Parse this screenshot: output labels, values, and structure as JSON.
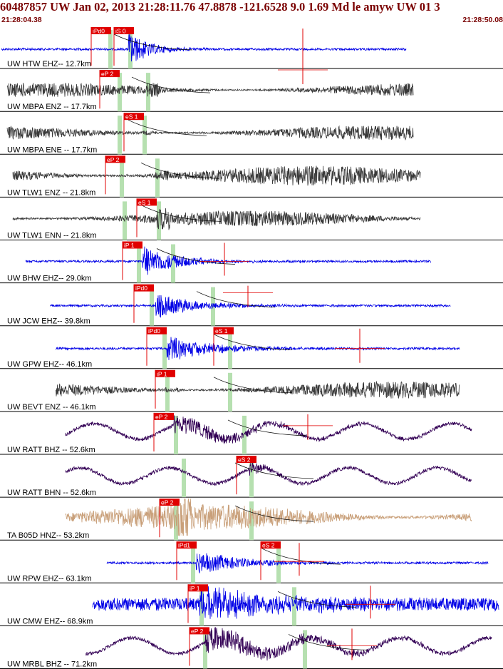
{
  "header": {
    "title": "60487857 UW Jan 02, 2013 21:28:11.76   47.8878 -121.6528  9.0 1.69 Md le amyw UW 01    3",
    "time_start": "21:28:04.38",
    "time_end": "21:28:50.08"
  },
  "colors": {
    "title_text": "#7a0000",
    "pick_box": "#e00000",
    "pick_bar": "#b6e0b0",
    "trace_blue": "#0000e6",
    "trace_gray": "#3a3a3a",
    "trace_purple": "#330055",
    "trace_tan": "#c9a07a",
    "amp_marker": "#e00000",
    "travel_curve": "#000000"
  },
  "traces": [
    {
      "label": "UW HTW EHZ-- 12.7km",
      "color": "blue",
      "style": "event",
      "picks": [
        "iPd0",
        "iS 0"
      ]
    },
    {
      "label": "UW MBPA ENZ -- 17.7km",
      "color": "gray",
      "style": "noise",
      "picks": [
        "eP 2"
      ]
    },
    {
      "label": "UW MBPA ENE -- 17.7km",
      "color": "gray",
      "style": "noise",
      "picks": [
        "eS 1"
      ]
    },
    {
      "label": "UW TLW1 ENZ -- 21.8km",
      "color": "gray",
      "style": "noise",
      "picks": [
        "eP 2"
      ]
    },
    {
      "label": "UW TLW1 ENN -- 21.8km",
      "color": "gray",
      "style": "noise",
      "picks": [
        "eS 1"
      ]
    },
    {
      "label": "UW BHW EHZ-- 29.0km",
      "color": "blue",
      "style": "event",
      "picks": [
        "iP 1"
      ]
    },
    {
      "label": "UW JCW EHZ-- 39.8km",
      "color": "blue",
      "style": "event",
      "picks": [
        "iPd0"
      ]
    },
    {
      "label": "UW GPW EHZ-- 46.1km",
      "color": "blue",
      "style": "event",
      "picks": [
        "iPd0",
        "eS 1"
      ]
    },
    {
      "label": "UW BEVT ENZ -- 46.1km",
      "color": "gray",
      "style": "noise",
      "picks": [
        "iP 1"
      ]
    },
    {
      "label": "UW RATT BHZ -- 52.6km",
      "color": "purple",
      "style": "wave",
      "picks": [
        "eP 2"
      ]
    },
    {
      "label": "UW RATT BHN -- 52.6km",
      "color": "purple",
      "style": "wave",
      "picks": [
        "eS 2"
      ]
    },
    {
      "label": "TA B05D HNZ-- 53.2km",
      "color": "tan",
      "style": "noise",
      "picks": [
        "eP 2"
      ]
    },
    {
      "label": "UW RPW EHZ-- 63.1km",
      "color": "blue",
      "style": "event",
      "picks": [
        "iPd1",
        "eS 2"
      ]
    },
    {
      "label": "UW CMW EHZ-- 68.9km",
      "color": "blue",
      "style": "noisyevent",
      "picks": [
        "iP 1"
      ]
    },
    {
      "label": "UW MRBL BHZ -- 71.2km",
      "color": "purple",
      "style": "wave",
      "picks": [
        "eP 2"
      ]
    }
  ]
}
